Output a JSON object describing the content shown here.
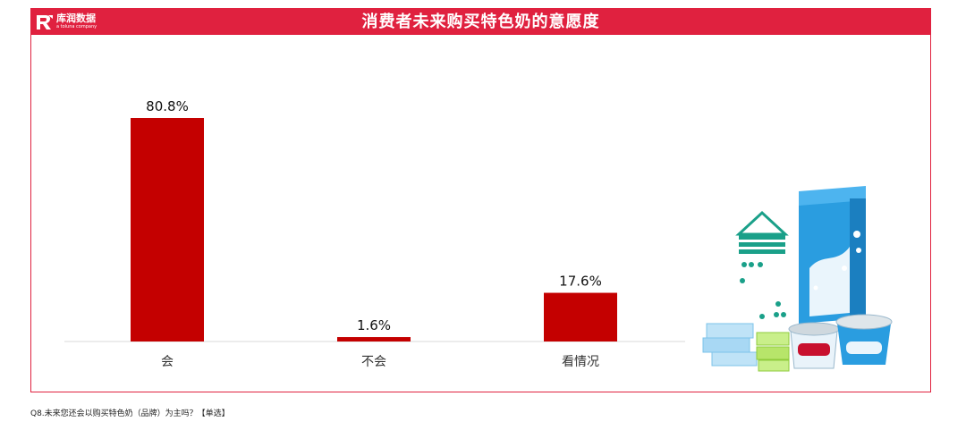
{
  "header": {
    "logo_text": "库润数据",
    "logo_sub": "a toluna company",
    "title": "消费者未来购买特色奶的意愿度"
  },
  "footnote": "Q8.未来您还会以购买特色奶（品牌）为主吗？【单选】",
  "colors": {
    "accent": "#e0213f",
    "bar": "#c40000"
  },
  "chart_data": {
    "type": "bar",
    "title": "消费者未来购买特色奶的意愿度",
    "categories": [
      "会",
      "不会",
      "看情况"
    ],
    "values": [
      80.8,
      1.6,
      17.6
    ],
    "value_labels": [
      "80.8%",
      "1.6%",
      "17.6%"
    ],
    "unit": "%",
    "ylim": [
      0,
      100
    ],
    "grid": false,
    "legend": "none"
  },
  "illustration": {
    "icon": "milk-products-icon"
  }
}
